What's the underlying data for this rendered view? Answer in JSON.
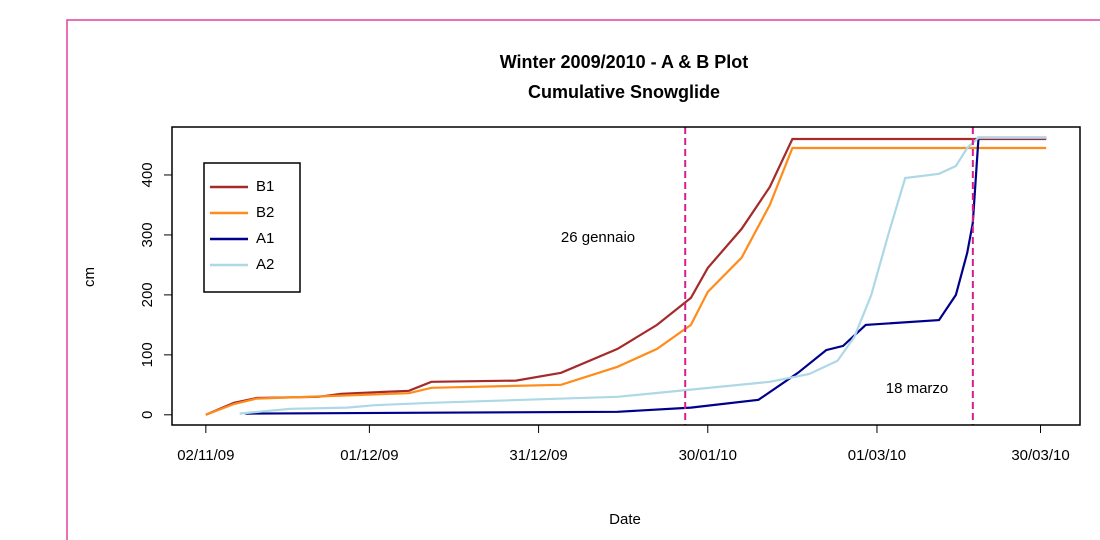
{
  "chart_data": {
    "type": "line",
    "title": "Winter 2009/2010 - A & B Plot",
    "subtitle": "Cumulative Snowglide",
    "x_label": "Date",
    "y_label": "cm",
    "xlim": [
      "2009-10-27",
      "2010-04-06"
    ],
    "xticks": [
      {
        "value": "2009-11-02",
        "label": "02/11/09"
      },
      {
        "value": "2009-12-01",
        "label": "01/12/09"
      },
      {
        "value": "2009-12-31",
        "label": "31/12/09"
      },
      {
        "value": "2010-01-30",
        "label": "30/01/10"
      },
      {
        "value": "2010-03-01",
        "label": "01/03/10"
      },
      {
        "value": "2010-03-30",
        "label": "30/03/10"
      }
    ],
    "ylim": [
      -17,
      480
    ],
    "yticks": [
      0,
      100,
      200,
      300,
      400
    ],
    "legend": "topleft",
    "vlines": [
      "2010-01-26",
      "2010-03-18"
    ],
    "vline_color": "#d61f8c",
    "annotations": [
      "26 gennaio",
      "18 marzo"
    ],
    "series": [
      {
        "name": "B1",
        "color": "#a52a2a",
        "x": [
          "2009-11-02",
          "2009-11-07",
          "2009-11-11",
          "2009-11-22",
          "2009-11-26",
          "2009-12-08",
          "2009-12-12",
          "2009-12-27",
          "2010-01-04",
          "2010-01-14",
          "2010-01-21",
          "2010-01-27",
          "2010-01-30",
          "2010-02-05",
          "2010-02-10",
          "2010-02-14",
          "2010-03-31"
        ],
        "values": [
          0,
          20,
          28,
          30,
          35,
          40,
          55,
          57,
          70,
          110,
          150,
          195,
          245,
          310,
          380,
          460,
          460
        ]
      },
      {
        "name": "B2",
        "color": "#ff8c1a",
        "x": [
          "2009-11-02",
          "2009-11-07",
          "2009-11-11",
          "2009-11-26",
          "2009-12-08",
          "2009-12-12",
          "2010-01-04",
          "2010-01-14",
          "2010-01-21",
          "2010-01-27",
          "2010-01-30",
          "2010-02-05",
          "2010-02-10",
          "2010-02-14",
          "2010-03-31"
        ],
        "values": [
          0,
          18,
          27,
          32,
          36,
          45,
          50,
          80,
          110,
          150,
          205,
          262,
          350,
          445,
          445
        ]
      },
      {
        "name": "A1",
        "color": "#00008b",
        "x": [
          "2009-11-09",
          "2010-01-14",
          "2010-01-27",
          "2010-02-08",
          "2010-02-15",
          "2010-02-20",
          "2010-02-23",
          "2010-02-27",
          "2010-03-12",
          "2010-03-15",
          "2010-03-17",
          "2010-03-18",
          "2010-03-19",
          "2010-03-31"
        ],
        "values": [
          2,
          5,
          12,
          25,
          70,
          108,
          115,
          150,
          158,
          200,
          270,
          320,
          462,
          462
        ]
      },
      {
        "name": "A2",
        "color": "#add8e6",
        "x": [
          "2009-11-08",
          "2009-11-17",
          "2009-11-27",
          "2009-12-02",
          "2009-12-12",
          "2010-01-14",
          "2010-01-27",
          "2010-02-10",
          "2010-02-17",
          "2010-02-22",
          "2010-02-25",
          "2010-02-28",
          "2010-03-03",
          "2010-03-06",
          "2010-03-12",
          "2010-03-15",
          "2010-03-17",
          "2010-03-19",
          "2010-03-31"
        ],
        "values": [
          2,
          10,
          12,
          16,
          20,
          30,
          42,
          55,
          68,
          90,
          130,
          200,
          300,
          395,
          402,
          415,
          445,
          462,
          462
        ]
      }
    ]
  }
}
